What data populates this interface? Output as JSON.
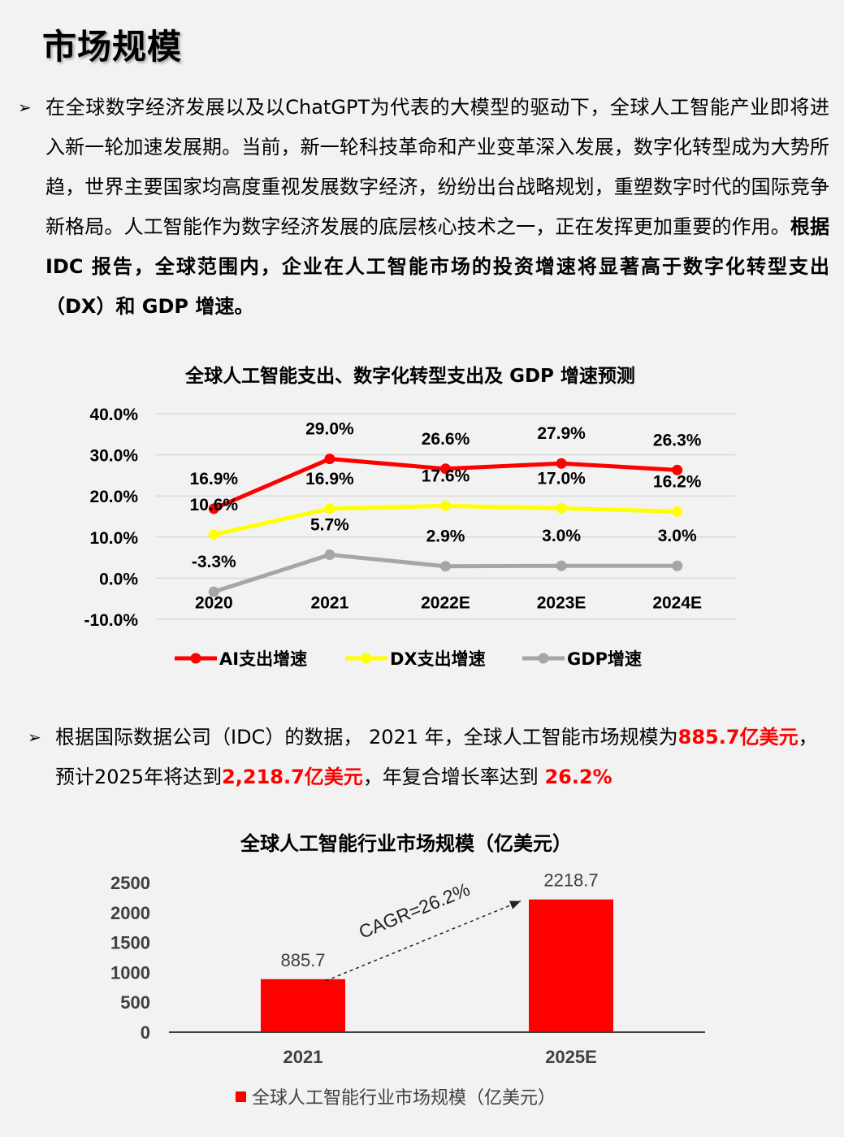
{
  "page": {
    "title": "市场规模",
    "bullet_marker": "➢",
    "para1": {
      "text_a": "在全球数字经济发展以及以ChatGPT为代表的大模型的驱动下，全球人工智能产业即将进入新一轮加速发展期。当前，新一轮科技革命和产业变革深入发展，数字化转型成为大势所趋，世界主要国家均高度重视发展数字经济，纷纷出台战略规划，重塑数字时代的国际竞争新格局。人工智能作为数字经济发展的底层核心技术之一，正在发挥更加重要的作用。",
      "text_bold": "根据 IDC 报告，全球范围内，企业在人工智能市场的投资增速将显著高于数字化转型支出（DX）和 GDP 增速。"
    },
    "para2": {
      "text_a": "根据国际数据公司（IDC）的数据， 2021 年，全球人工智能市场规模为",
      "red_a": "885.7亿美元",
      "text_b": "，预计2025年将达到",
      "red_b": "2,218.7亿美元",
      "text_c": "，年复合增长率达到 ",
      "red_c": "26.2%"
    }
  },
  "chart_data": [
    {
      "type": "line",
      "title": "全球人工智能支出、数字化转型支出及 GDP 增速预测",
      "categories": [
        "2020",
        "2021",
        "2022E",
        "2023E",
        "2024E"
      ],
      "y_ticks": [
        "40.0%",
        "30.0%",
        "20.0%",
        "10.0%",
        "0.0%",
        "-10.0%"
      ],
      "ylim": [
        -10,
        40
      ],
      "grid": true,
      "legend_position": "bottom",
      "series": [
        {
          "name": "AI支出增速",
          "color": "#ff0000",
          "values": [
            16.9,
            29.0,
            26.6,
            27.9,
            26.3
          ],
          "labels": [
            "16.9%",
            "29.0%",
            "26.6%",
            "27.9%",
            "26.3%"
          ]
        },
        {
          "name": "DX支出增速",
          "color": "#ffff00",
          "values": [
            10.6,
            16.9,
            17.6,
            17.0,
            16.2
          ],
          "labels": [
            "10.6%",
            "16.9%",
            "17.6%",
            "17.0%",
            "16.2%"
          ]
        },
        {
          "name": "GDP增速",
          "color": "#a6a6a6",
          "values": [
            -3.3,
            5.7,
            2.9,
            3.0,
            3.0
          ],
          "labels": [
            "-3.3%",
            "5.7%",
            "2.9%",
            "3.0%",
            "3.0%"
          ]
        }
      ]
    },
    {
      "type": "bar",
      "title": "全球人工智能行业市场规模（亿美元）",
      "categories": [
        "2021",
        "2025E"
      ],
      "values": [
        885.7,
        2218.7
      ],
      "labels": [
        "885.7",
        "2218.7"
      ],
      "y_ticks": [
        "2500",
        "2000",
        "1500",
        "1000",
        "500",
        "0"
      ],
      "ylim": [
        0,
        2500
      ],
      "color": "#ff0000",
      "annotation": "CAGR=26.2%",
      "legend": "全球人工智能行业市场规模（亿美元）",
      "legend_position": "bottom"
    }
  ]
}
